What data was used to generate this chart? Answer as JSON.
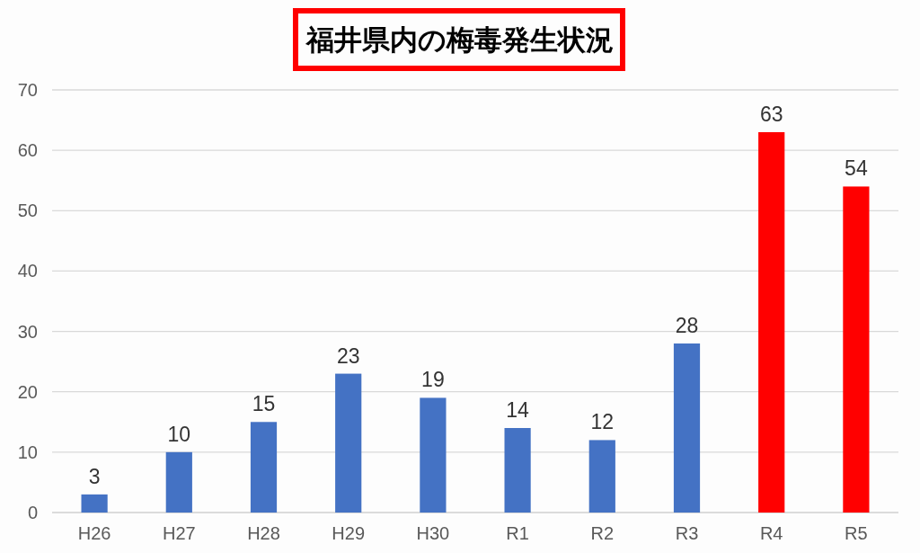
{
  "chart_data": {
    "type": "bar",
    "title": "福井県内の梅毒発生状況",
    "categories": [
      "H26",
      "H27",
      "H28",
      "H29",
      "H30",
      "R1",
      "R2",
      "R3",
      "R4",
      "R5"
    ],
    "values": [
      3,
      10,
      15,
      23,
      19,
      14,
      12,
      28,
      63,
      54
    ],
    "colors": [
      "#4472c4",
      "#4472c4",
      "#4472c4",
      "#4472c4",
      "#4472c4",
      "#4472c4",
      "#4472c4",
      "#4472c4",
      "#ff0000",
      "#ff0000"
    ],
    "ylim": [
      0,
      70
    ],
    "yticks": [
      0,
      10,
      20,
      30,
      40,
      50,
      60,
      70
    ],
    "grid": "y",
    "data_labels": true
  }
}
